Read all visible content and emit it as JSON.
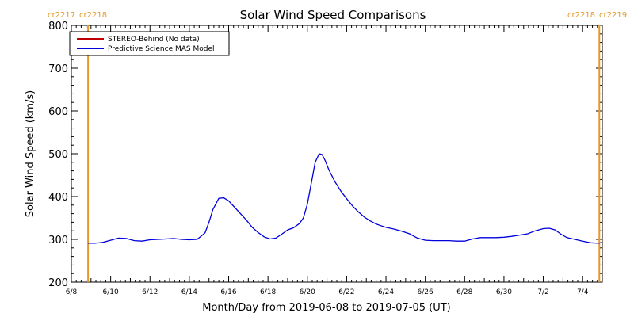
{
  "chart_data": {
    "type": "line",
    "title": "Solar Wind Speed Comparisons",
    "xlabel": "Month/Day from 2019-06-08 to 2019-07-05 (UT)",
    "ylabel": "Solar Wind Speed (km/s)",
    "ylim": [
      200,
      800
    ],
    "yticks": [
      200,
      300,
      400,
      500,
      600,
      700,
      800
    ],
    "xlim": [
      0,
      27
    ],
    "xticks": [
      {
        "x": 0,
        "label": "6/8"
      },
      {
        "x": 2,
        "label": "6/10"
      },
      {
        "x": 4,
        "label": "6/12"
      },
      {
        "x": 6,
        "label": "6/14"
      },
      {
        "x": 8,
        "label": "6/16"
      },
      {
        "x": 10,
        "label": "6/18"
      },
      {
        "x": 12,
        "label": "6/20"
      },
      {
        "x": 14,
        "label": "6/22"
      },
      {
        "x": 16,
        "label": "6/24"
      },
      {
        "x": 18,
        "label": "6/26"
      },
      {
        "x": 20,
        "label": "6/28"
      },
      {
        "x": 22,
        "label": "6/30"
      },
      {
        "x": 24,
        "label": "7/2"
      },
      {
        "x": 26,
        "label": "7/4"
      }
    ],
    "legend": {
      "placement": "top-left",
      "entries": [
        {
          "label": "STEREO-Behind (No data)",
          "color": "#c00000"
        },
        {
          "label": "Predictive Science MAS Model",
          "color": "#0000dd"
        }
      ]
    },
    "carrington": [
      {
        "x": 0.85,
        "label_left": "cr2217",
        "label_right": "cr2218",
        "color": "#e39a2a"
      },
      {
        "x": 26.85,
        "label_left": "cr2218",
        "label_right": "cr2219",
        "color": "#e39a2a"
      }
    ],
    "series": [
      {
        "name": "Predictive Science MAS Model",
        "color": "#0000dd",
        "x": [
          0.85,
          1.2,
          1.6,
          2.0,
          2.4,
          2.8,
          3.2,
          3.6,
          4.0,
          4.4,
          4.8,
          5.2,
          5.6,
          6.0,
          6.4,
          6.8,
          7.0,
          7.2,
          7.5,
          7.75,
          8.0,
          8.3,
          8.6,
          8.9,
          9.2,
          9.5,
          9.8,
          10.1,
          10.4,
          10.7,
          11.0,
          11.3,
          11.6,
          11.8,
          12.0,
          12.2,
          12.4,
          12.6,
          12.75,
          12.9,
          13.1,
          13.4,
          13.7,
          14.0,
          14.3,
          14.6,
          14.9,
          15.2,
          15.5,
          15.8,
          16.0,
          16.4,
          16.8,
          17.2,
          17.6,
          18.0,
          18.4,
          18.8,
          19.2,
          19.6,
          20.0,
          20.4,
          20.8,
          21.2,
          21.6,
          22.0,
          22.4,
          22.8,
          23.2,
          23.6,
          24.0,
          24.3,
          24.6,
          24.9,
          25.2,
          25.6,
          26.0,
          26.4,
          26.8,
          27.0
        ],
        "y": [
          291,
          291,
          293,
          298,
          303,
          302,
          297,
          296,
          299,
          300,
          301,
          302,
          300,
          299,
          300,
          315,
          340,
          370,
          396,
          397,
          390,
          375,
          360,
          345,
          328,
          316,
          306,
          301,
          303,
          312,
          322,
          327,
          337,
          350,
          382,
          430,
          480,
          500,
          498,
          485,
          462,
          435,
          413,
          395,
          378,
          364,
          352,
          343,
          336,
          331,
          328,
          324,
          319,
          313,
          303,
          298,
          297,
          297,
          297,
          296,
          296,
          301,
          304,
          304,
          304,
          305,
          307,
          310,
          313,
          320,
          325,
          326,
          322,
          312,
          304,
          300,
          296,
          292,
          291,
          293
        ]
      }
    ]
  }
}
